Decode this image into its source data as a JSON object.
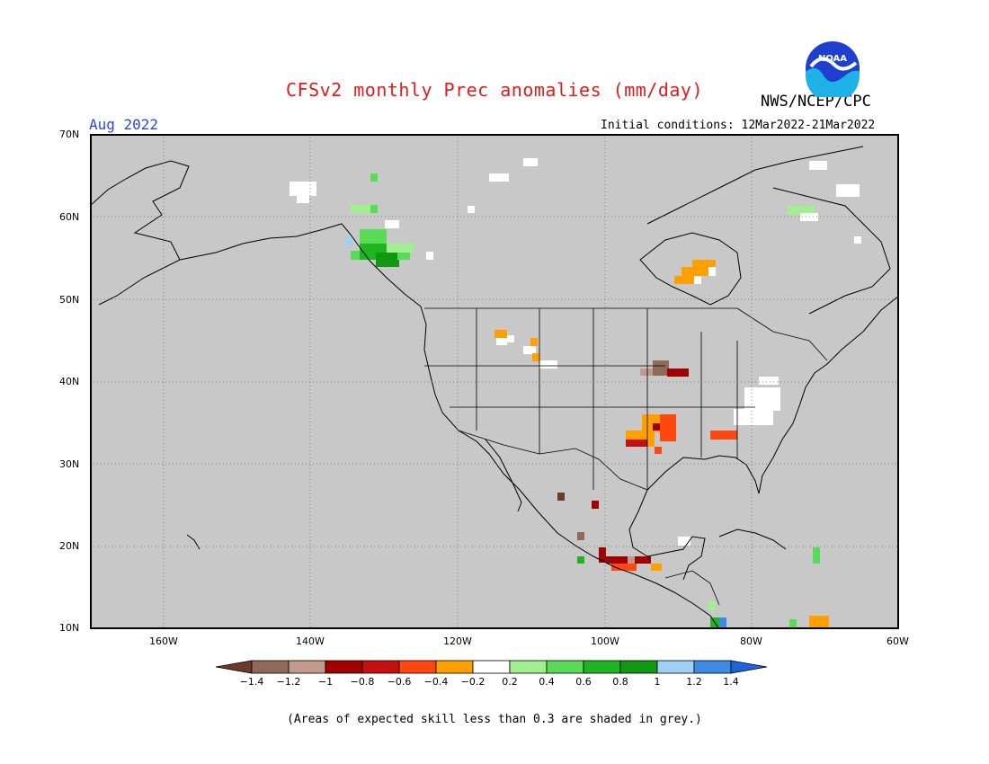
{
  "title": "CFSv2 monthly Prec anomalies (mm/day)",
  "agency": "NWS/NCEP/CPC",
  "logo_text": "NOAA",
  "valid_month": "Aug 2022",
  "initial_conditions": "Initial conditions: 12Mar2022-21Mar2022",
  "footnote": "(Areas of expected skill less than 0.3 are shaded in grey.)",
  "map": {
    "lat_labels": [
      "70N",
      "60N",
      "50N",
      "40N",
      "30N",
      "20N",
      "10N"
    ],
    "lon_labels": [
      "160W",
      "140W",
      "120W",
      "100W",
      "80W",
      "60W"
    ],
    "background_color": "#c8c8c8"
  },
  "colorbar": {
    "labels": [
      "-1.4",
      "-1.2",
      "-1",
      "-0.8",
      "-0.6",
      "-0.4",
      "-0.2",
      "0.2",
      "0.4",
      "0.6",
      "0.8",
      "1",
      "1.2",
      "1.4"
    ],
    "colors": [
      "#6b3a2a",
      "#8f6a5a",
      "#c19a8c",
      "#a00000",
      "#c41010",
      "#ff4810",
      "#ffa000",
      "#ffffff",
      "#a0f090",
      "#58dc58",
      "#20b420",
      "#109810",
      "#a0d0f8",
      "#3c8ce6",
      "#1e64dc"
    ]
  }
}
